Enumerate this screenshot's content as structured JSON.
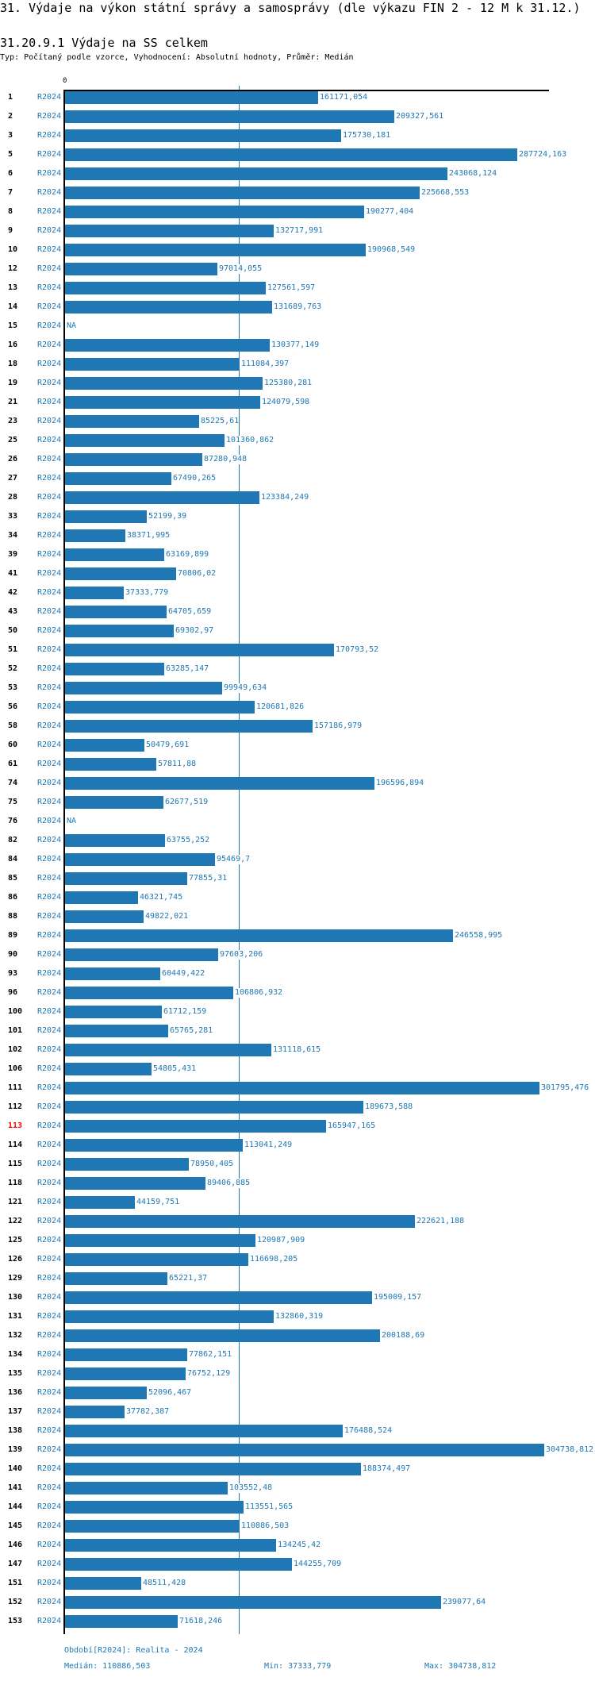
{
  "header": {
    "title": "31. Výdaje na výkon státní správy a samosprávy (dle výkazu FIN 2 - 12 M k 31.12.)",
    "subtitle": "31.20.9.1 Výdaje na SS celkem",
    "type_line": "Typ: Počítaný podle vzorce, Vyhodnocení: Absolutní hodnoty, Průměr: Medián"
  },
  "colors": {
    "bar": "#1f77b4",
    "highlight": "#ff0000",
    "text": "#1f77b4"
  },
  "chart_data": {
    "type": "bar",
    "orientation": "horizontal",
    "axis_zero_label": "0",
    "xlim": [
      0,
      304738.812
    ],
    "median": 110886.503,
    "highlighted_id": "113",
    "rows": [
      {
        "id": "1",
        "period": "R2024",
        "value": 161171.054,
        "label": "161171,054"
      },
      {
        "id": "2",
        "period": "R2024",
        "value": 209327.561,
        "label": "209327,561"
      },
      {
        "id": "3",
        "period": "R2024",
        "value": 175730.181,
        "label": "175730,181"
      },
      {
        "id": "5",
        "period": "R2024",
        "value": 287724.163,
        "label": "287724,163"
      },
      {
        "id": "6",
        "period": "R2024",
        "value": 243068.124,
        "label": "243068,124"
      },
      {
        "id": "7",
        "period": "R2024",
        "value": 225668.553,
        "label": "225668,553"
      },
      {
        "id": "8",
        "period": "R2024",
        "value": 190277.404,
        "label": "190277,404"
      },
      {
        "id": "9",
        "period": "R2024",
        "value": 132717.991,
        "label": "132717,991"
      },
      {
        "id": "10",
        "period": "R2024",
        "value": 190968.549,
        "label": "190968,549"
      },
      {
        "id": "12",
        "period": "R2024",
        "value": 97014.055,
        "label": "97014,055"
      },
      {
        "id": "13",
        "period": "R2024",
        "value": 127561.597,
        "label": "127561,597"
      },
      {
        "id": "14",
        "period": "R2024",
        "value": 131689.763,
        "label": "131689,763"
      },
      {
        "id": "15",
        "period": "R2024",
        "value": null,
        "label": "NA"
      },
      {
        "id": "16",
        "period": "R2024",
        "value": 130377.149,
        "label": "130377,149"
      },
      {
        "id": "18",
        "period": "R2024",
        "value": 111084.397,
        "label": "111084,397"
      },
      {
        "id": "19",
        "period": "R2024",
        "value": 125380.281,
        "label": "125380,281"
      },
      {
        "id": "21",
        "period": "R2024",
        "value": 124079.598,
        "label": "124079,598"
      },
      {
        "id": "23",
        "period": "R2024",
        "value": 85225.61,
        "label": "85225,61"
      },
      {
        "id": "25",
        "period": "R2024",
        "value": 101360.862,
        "label": "101360,862"
      },
      {
        "id": "26",
        "period": "R2024",
        "value": 87280.948,
        "label": "87280,948"
      },
      {
        "id": "27",
        "period": "R2024",
        "value": 67490.265,
        "label": "67490,265"
      },
      {
        "id": "28",
        "period": "R2024",
        "value": 123384.249,
        "label": "123384,249"
      },
      {
        "id": "33",
        "period": "R2024",
        "value": 52199.39,
        "label": "52199,39"
      },
      {
        "id": "34",
        "period": "R2024",
        "value": 38371.995,
        "label": "38371,995"
      },
      {
        "id": "39",
        "period": "R2024",
        "value": 63169.899,
        "label": "63169,899"
      },
      {
        "id": "41",
        "period": "R2024",
        "value": 70806.02,
        "label": "70806,02"
      },
      {
        "id": "42",
        "period": "R2024",
        "value": 37333.779,
        "label": "37333,779"
      },
      {
        "id": "43",
        "period": "R2024",
        "value": 64705.659,
        "label": "64705,659"
      },
      {
        "id": "50",
        "period": "R2024",
        "value": 69302.97,
        "label": "69302,97"
      },
      {
        "id": "51",
        "period": "R2024",
        "value": 170793.52,
        "label": "170793,52"
      },
      {
        "id": "52",
        "period": "R2024",
        "value": 63285.147,
        "label": "63285,147"
      },
      {
        "id": "53",
        "period": "R2024",
        "value": 99949.634,
        "label": "99949,634"
      },
      {
        "id": "56",
        "period": "R2024",
        "value": 120681.826,
        "label": "120681,826"
      },
      {
        "id": "58",
        "period": "R2024",
        "value": 157186.979,
        "label": "157186,979"
      },
      {
        "id": "60",
        "period": "R2024",
        "value": 50479.691,
        "label": "50479,691"
      },
      {
        "id": "61",
        "period": "R2024",
        "value": 57811.88,
        "label": "57811,88"
      },
      {
        "id": "74",
        "period": "R2024",
        "value": 196596.894,
        "label": "196596,894"
      },
      {
        "id": "75",
        "period": "R2024",
        "value": 62677.519,
        "label": "62677,519"
      },
      {
        "id": "76",
        "period": "R2024",
        "value": null,
        "label": "NA"
      },
      {
        "id": "82",
        "period": "R2024",
        "value": 63755.252,
        "label": "63755,252"
      },
      {
        "id": "84",
        "period": "R2024",
        "value": 95469.7,
        "label": "95469,7"
      },
      {
        "id": "85",
        "period": "R2024",
        "value": 77855.31,
        "label": "77855,31"
      },
      {
        "id": "86",
        "period": "R2024",
        "value": 46321.745,
        "label": "46321,745"
      },
      {
        "id": "88",
        "period": "R2024",
        "value": 49822.021,
        "label": "49822,021"
      },
      {
        "id": "89",
        "period": "R2024",
        "value": 246558.995,
        "label": "246558,995"
      },
      {
        "id": "90",
        "period": "R2024",
        "value": 97603.206,
        "label": "97603,206"
      },
      {
        "id": "93",
        "period": "R2024",
        "value": 60449.422,
        "label": "60449,422"
      },
      {
        "id": "96",
        "period": "R2024",
        "value": 106806.932,
        "label": "106806,932"
      },
      {
        "id": "100",
        "period": "R2024",
        "value": 61712.159,
        "label": "61712,159"
      },
      {
        "id": "101",
        "period": "R2024",
        "value": 65765.281,
        "label": "65765,281"
      },
      {
        "id": "102",
        "period": "R2024",
        "value": 131118.615,
        "label": "131118,615"
      },
      {
        "id": "106",
        "period": "R2024",
        "value": 54805.431,
        "label": "54805,431"
      },
      {
        "id": "111",
        "period": "R2024",
        "value": 301795.476,
        "label": "301795,476"
      },
      {
        "id": "112",
        "period": "R2024",
        "value": 189673.588,
        "label": "189673,588"
      },
      {
        "id": "113",
        "period": "R2024",
        "value": 165947.165,
        "label": "165947,165"
      },
      {
        "id": "114",
        "period": "R2024",
        "value": 113041.249,
        "label": "113041,249"
      },
      {
        "id": "115",
        "period": "R2024",
        "value": 78950.405,
        "label": "78950,405"
      },
      {
        "id": "118",
        "period": "R2024",
        "value": 89406.885,
        "label": "89406,885"
      },
      {
        "id": "121",
        "period": "R2024",
        "value": 44159.751,
        "label": "44159,751"
      },
      {
        "id": "122",
        "period": "R2024",
        "value": 222621.188,
        "label": "222621,188"
      },
      {
        "id": "125",
        "period": "R2024",
        "value": 120987.909,
        "label": "120987,909"
      },
      {
        "id": "126",
        "period": "R2024",
        "value": 116698.205,
        "label": "116698,205"
      },
      {
        "id": "129",
        "period": "R2024",
        "value": 65221.37,
        "label": "65221,37"
      },
      {
        "id": "130",
        "period": "R2024",
        "value": 195009.157,
        "label": "195009,157"
      },
      {
        "id": "131",
        "period": "R2024",
        "value": 132860.319,
        "label": "132860,319"
      },
      {
        "id": "132",
        "period": "R2024",
        "value": 200188.69,
        "label": "200188,69"
      },
      {
        "id": "134",
        "period": "R2024",
        "value": 77862.151,
        "label": "77862,151"
      },
      {
        "id": "135",
        "period": "R2024",
        "value": 76752.129,
        "label": "76752,129"
      },
      {
        "id": "136",
        "period": "R2024",
        "value": 52096.467,
        "label": "52096,467"
      },
      {
        "id": "137",
        "period": "R2024",
        "value": 37782.387,
        "label": "37782,387"
      },
      {
        "id": "138",
        "period": "R2024",
        "value": 176488.524,
        "label": "176488,524"
      },
      {
        "id": "139",
        "period": "R2024",
        "value": 304738.812,
        "label": "304738,812"
      },
      {
        "id": "140",
        "period": "R2024",
        "value": 188374.497,
        "label": "188374,497"
      },
      {
        "id": "141",
        "period": "R2024",
        "value": 103552.48,
        "label": "103552,48"
      },
      {
        "id": "144",
        "period": "R2024",
        "value": 113551.565,
        "label": "113551,565"
      },
      {
        "id": "145",
        "period": "R2024",
        "value": 110886.503,
        "label": "110886,503"
      },
      {
        "id": "146",
        "period": "R2024",
        "value": 134245.42,
        "label": "134245,42"
      },
      {
        "id": "147",
        "period": "R2024",
        "value": 144255.709,
        "label": "144255,709"
      },
      {
        "id": "151",
        "period": "R2024",
        "value": 48511.428,
        "label": "48511,428"
      },
      {
        "id": "152",
        "period": "R2024",
        "value": 239077.64,
        "label": "239077,64"
      },
      {
        "id": "153",
        "period": "R2024",
        "value": 71618.246,
        "label": "71618,246"
      }
    ]
  },
  "footer": {
    "period_legend": "Období[R2024]: Realita - 2024",
    "median": "Medián: 110886,503",
    "min": "Min: 37333,779",
    "max": "Max: 304738,812"
  }
}
